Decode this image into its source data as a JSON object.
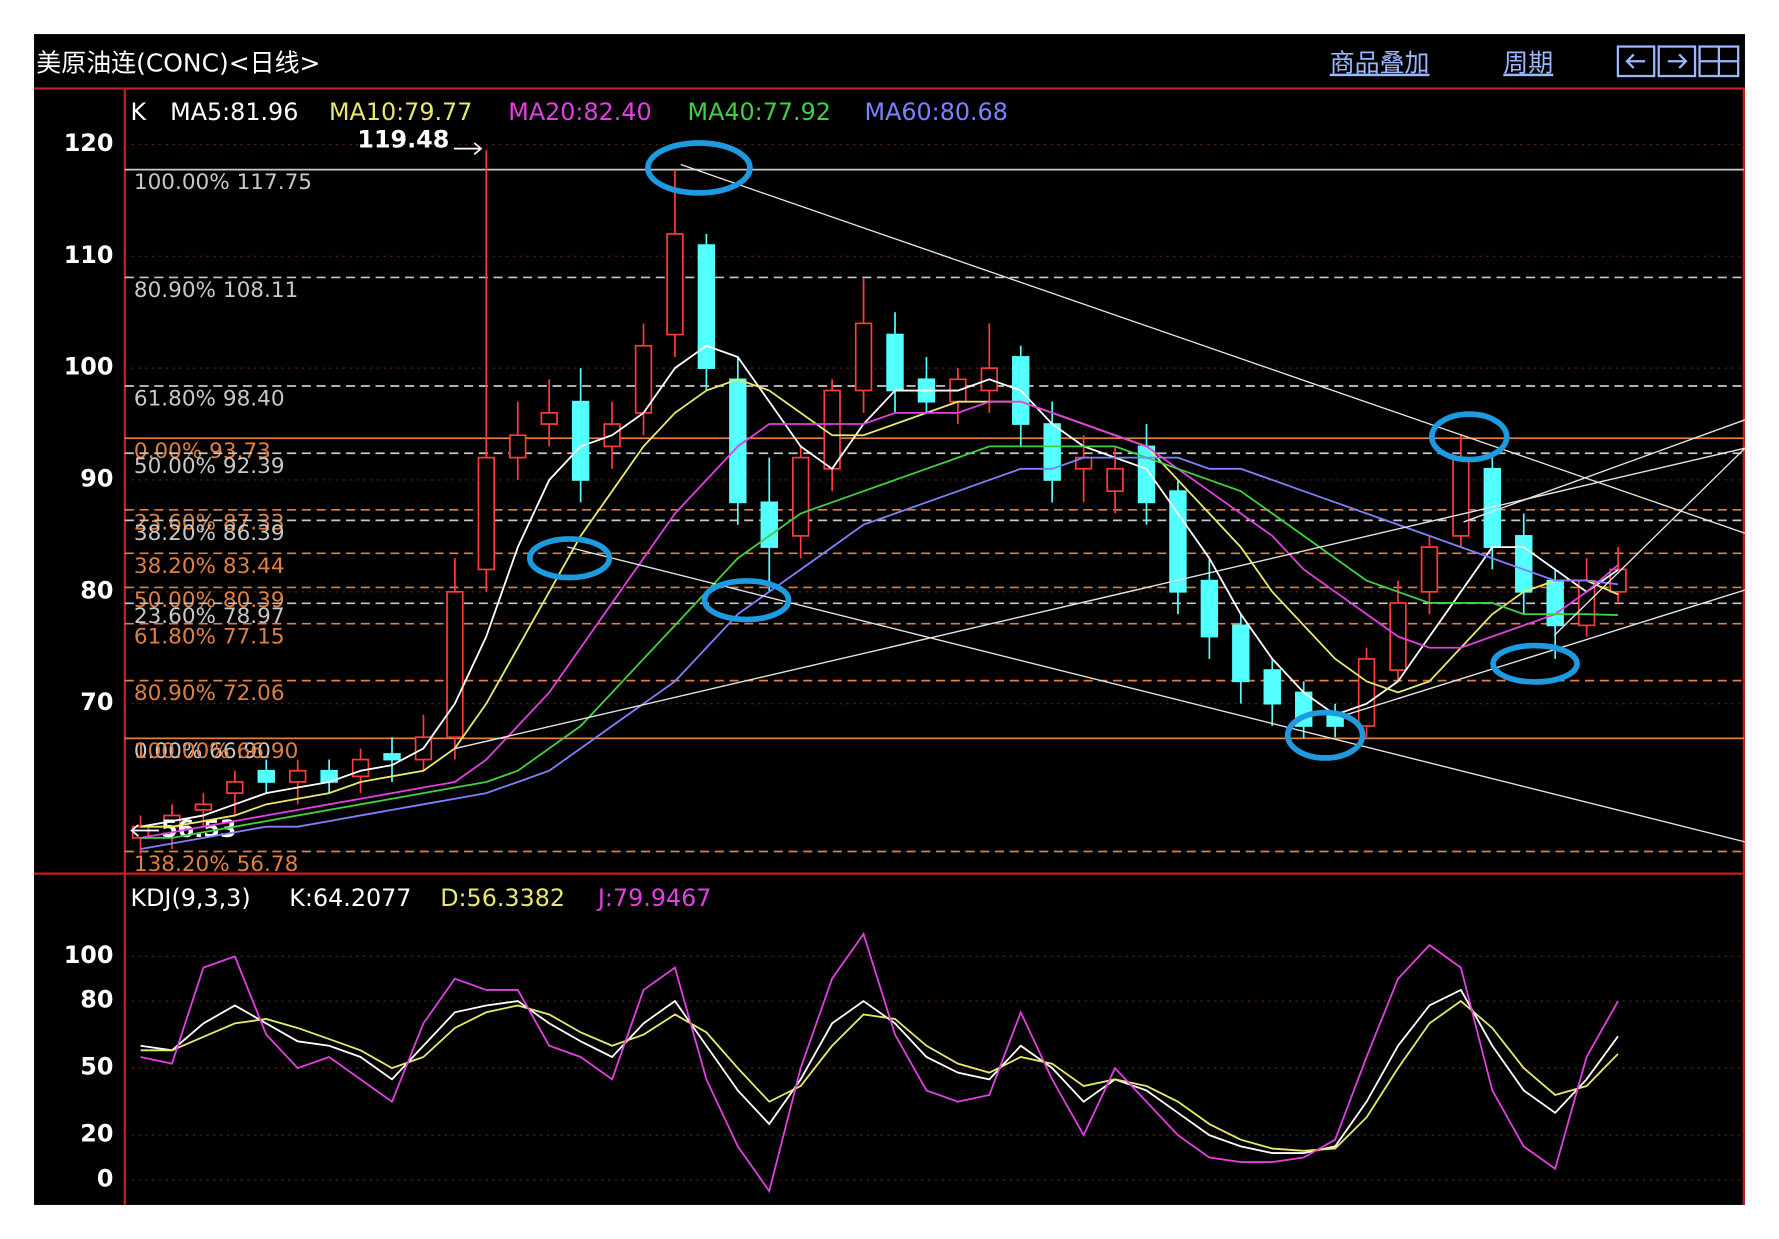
{
  "header": {
    "title": "美原油连(CONC)<日线>",
    "menu": [
      "商品叠加",
      "周期"
    ]
  },
  "chart_data": [
    {
      "type": "candlestick",
      "legend_label": "K",
      "ylim": [
        54.8,
        125
      ],
      "yticks": [
        70,
        80,
        90,
        100,
        110,
        120
      ],
      "grid": true,
      "up_color": "#ff3b3b",
      "down_color": "#54ffff",
      "candles": {
        "open": [
          58,
          59,
          60.5,
          62,
          64,
          63,
          64,
          63.5,
          65.5,
          65,
          67,
          82,
          92,
          95,
          97,
          93,
          96,
          103,
          111,
          99,
          88,
          85,
          91,
          98,
          103,
          99,
          97,
          98,
          101,
          95,
          91,
          89,
          93,
          89,
          81,
          77,
          73,
          71,
          69,
          68,
          73,
          80,
          85,
          91,
          85,
          81,
          77,
          80
        ],
        "high": [
          60,
          61,
          62,
          64,
          65,
          65,
          65,
          66,
          67,
          69,
          83,
          119.48,
          97,
          99,
          100,
          97,
          104,
          117.75,
          112,
          101,
          92,
          93,
          99,
          108,
          105,
          101,
          100,
          104,
          102,
          97,
          94,
          93,
          95,
          90,
          83,
          78,
          74,
          72,
          70,
          75,
          81,
          85,
          94,
          92,
          87,
          82,
          83,
          84
        ],
        "low": [
          56.53,
          57,
          59,
          60,
          62,
          61,
          62,
          62,
          63,
          64,
          65,
          80,
          90,
          93,
          88,
          91,
          94,
          101,
          98,
          86,
          80,
          83,
          89,
          96,
          96,
          96,
          95,
          96,
          93,
          88,
          88,
          87,
          86,
          78,
          74,
          70,
          68,
          66.9,
          67,
          67,
          72,
          78,
          84,
          82,
          78,
          74,
          76,
          79
        ],
        "close": [
          59,
          60,
          61,
          63,
          63,
          64,
          63,
          65,
          65,
          67,
          80,
          92,
          94,
          96,
          90,
          95,
          102,
          112,
          100,
          88,
          84,
          92,
          98,
          104,
          98,
          97,
          99,
          100,
          95,
          90,
          92,
          91,
          88,
          80,
          76,
          72,
          70,
          68,
          68,
          74,
          79,
          84,
          92,
          84,
          80,
          77,
          81,
          82
        ]
      },
      "max_label": 119.48,
      "min_label": 56.53,
      "series": [
        {
          "name": "MA5:81.96",
          "color": "#ffffff",
          "values": [
            59,
            59.5,
            60,
            61,
            62,
            62.5,
            63,
            64,
            64.5,
            66,
            70,
            76,
            84,
            90,
            93,
            94,
            96,
            100,
            102,
            101,
            97,
            93,
            91,
            95,
            98,
            98,
            98,
            99,
            98,
            95,
            93,
            92,
            91,
            87,
            83,
            78,
            74,
            71,
            69,
            70,
            72,
            76,
            80,
            84,
            84,
            82,
            80,
            81.96
          ]
        },
        {
          "name": "MA10:79.77",
          "color": "#e8e86a",
          "values": [
            59,
            59,
            59.5,
            60,
            61,
            61.5,
            62,
            63,
            63.5,
            64,
            66,
            70,
            75,
            80,
            85,
            89,
            93,
            96,
            98,
            99,
            98,
            96,
            94,
            94,
            95,
            96,
            97,
            97,
            97,
            96,
            95,
            94,
            93,
            90,
            87,
            84,
            80,
            77,
            74,
            72,
            71,
            72,
            75,
            78,
            80,
            81,
            81,
            79.77
          ]
        },
        {
          "name": "MA20:82.40",
          "color": "#e040e0",
          "values": [
            58,
            58.5,
            59,
            59.5,
            60,
            60.5,
            61,
            61.5,
            62,
            62.5,
            63,
            65,
            68,
            71,
            75,
            79,
            83,
            87,
            90,
            93,
            95,
            95,
            95,
            95,
            96,
            96,
            96,
            97,
            97,
            96,
            95,
            94,
            93,
            91,
            89,
            87,
            85,
            82,
            80,
            78,
            76,
            75,
            75,
            76,
            77,
            78,
            80,
            82.4
          ]
        },
        {
          "name": "MA40:77.92",
          "color": "#40d040",
          "values": [
            58,
            58,
            58.5,
            59,
            59.5,
            60,
            60.5,
            61,
            61.5,
            62,
            62.5,
            63,
            64,
            66,
            68,
            71,
            74,
            77,
            80,
            83,
            85,
            87,
            88,
            89,
            90,
            91,
            92,
            93,
            93,
            93,
            93,
            93,
            92,
            91,
            90,
            89,
            87,
            85,
            83,
            81,
            80,
            79,
            79,
            79,
            78,
            78,
            78,
            77.92
          ]
        },
        {
          "name": "MA60:80.68",
          "color": "#8080ff",
          "values": [
            57,
            57.5,
            58,
            58.5,
            59,
            59,
            59.5,
            60,
            60.5,
            61,
            61.5,
            62,
            63,
            64,
            66,
            68,
            70,
            72,
            75,
            78,
            80,
            82,
            84,
            86,
            87,
            88,
            89,
            90,
            91,
            91,
            92,
            92,
            92,
            92,
            91,
            91,
            90,
            89,
            88,
            87,
            86,
            85,
            84,
            83,
            82,
            81,
            81,
            80.68
          ]
        }
      ],
      "fib_levels": [
        {
          "label": "100.00% 117.75",
          "value": 117.75,
          "color": "#c8c8c8",
          "dashed": false
        },
        {
          "label": "80.90% 108.11",
          "value": 108.11,
          "color": "#c8c8c8",
          "dashed": true
        },
        {
          "label": "61.80% 98.40",
          "value": 98.4,
          "color": "#c8c8c8",
          "dashed": true
        },
        {
          "label": "0.00% 93.73",
          "value": 93.73,
          "color": "#e08040",
          "dashed": false
        },
        {
          "label": "50.00% 92.39",
          "value": 92.39,
          "color": "#c8c8c8",
          "dashed": true
        },
        {
          "label": "23.60% 87.33",
          "value": 87.33,
          "color": "#e08040",
          "dashed": true
        },
        {
          "label": "38.20% 86.39",
          "value": 86.39,
          "color": "#c8c8c8",
          "dashed": true
        },
        {
          "label": "38.20% 83.44",
          "value": 83.44,
          "color": "#e08040",
          "dashed": true
        },
        {
          "label": "50.00% 80.39",
          "value": 80.39,
          "color": "#e08040",
          "dashed": true
        },
        {
          "label": "23.60% 78.97",
          "value": 78.97,
          "color": "#c8c8c8",
          "dashed": true
        },
        {
          "label": "61.80% 77.15",
          "value": 77.15,
          "color": "#e08040",
          "dashed": true
        },
        {
          "label": "80.90% 72.06",
          "value": 72.06,
          "color": "#e08040",
          "dashed": true
        },
        {
          "label": "0.00% 66.90",
          "value": 66.9,
          "color": "#c8c8c8",
          "dashed": false
        },
        {
          "label": "100.00% 66.90",
          "value": 66.9,
          "color": "#e08040",
          "dashed": false
        },
        {
          "label": "138.20% 56.78",
          "value": 56.78,
          "color": "#e08040",
          "dashed": true
        }
      ]
    },
    {
      "type": "line",
      "legend_label": "KDJ(9,3,3)",
      "ylim": [
        -11.2,
        137
      ],
      "yticks": [
        0,
        20,
        50,
        80,
        100
      ],
      "grid": true,
      "series": [
        {
          "name": "K:64.2077",
          "color": "#ffffff",
          "values": [
            60,
            58,
            70,
            78,
            70,
            62,
            60,
            55,
            45,
            60,
            75,
            78,
            80,
            70,
            62,
            55,
            70,
            80,
            60,
            40,
            25,
            45,
            70,
            80,
            70,
            55,
            48,
            45,
            60,
            50,
            35,
            45,
            40,
            30,
            20,
            15,
            12,
            12,
            15,
            35,
            60,
            78,
            85,
            60,
            40,
            30,
            45,
            64.2077
          ]
        },
        {
          "name": "D:56.3382",
          "color": "#e8e86a",
          "values": [
            58,
            58,
            64,
            70,
            72,
            68,
            63,
            58,
            50,
            55,
            68,
            75,
            78,
            74,
            66,
            60,
            65,
            74,
            66,
            50,
            35,
            42,
            60,
            74,
            72,
            60,
            52,
            48,
            55,
            52,
            42,
            45,
            42,
            35,
            25,
            18,
            14,
            13,
            14,
            28,
            50,
            70,
            80,
            68,
            50,
            38,
            42,
            56.3382
          ]
        },
        {
          "name": "J:79.9467",
          "color": "#e040e0",
          "values": [
            55,
            52,
            95,
            100,
            65,
            50,
            55,
            45,
            35,
            70,
            90,
            85,
            85,
            60,
            55,
            45,
            85,
            95,
            45,
            15,
            -5,
            50,
            90,
            110,
            65,
            40,
            35,
            38,
            75,
            45,
            20,
            50,
            35,
            20,
            10,
            8,
            8,
            10,
            18,
            55,
            90,
            105,
            95,
            40,
            15,
            5,
            55,
            79.9467
          ]
        }
      ]
    }
  ]
}
